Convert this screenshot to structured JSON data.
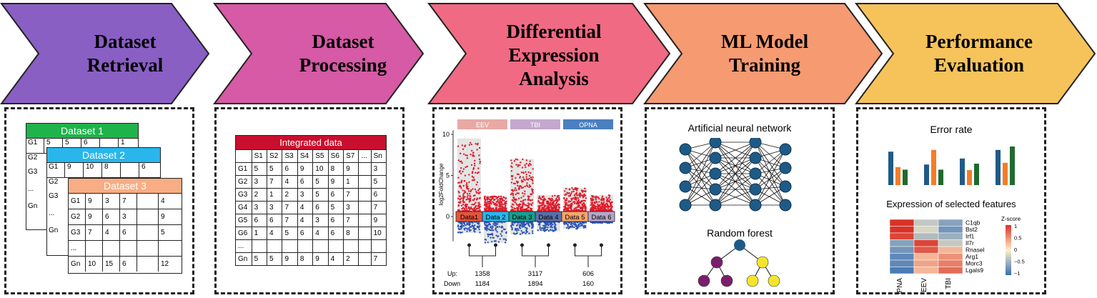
{
  "stages": [
    {
      "title_line1": "Dataset",
      "title_line2": "Retrieval",
      "color": "#8a5fc4"
    },
    {
      "title_line1": "Dataset",
      "title_line2": "Processing",
      "color": "#d65aa5"
    },
    {
      "title_line1": "Differential",
      "title_line2": "Expression",
      "title_line3": "Analysis",
      "color": "#f06a83"
    },
    {
      "title_line1": "ML Model",
      "title_line2": "Training",
      "color": "#f59a71"
    },
    {
      "title_line1": "Performance",
      "title_line2": "Evaluation",
      "color": "#f6c35a"
    }
  ],
  "retrieval": {
    "dataset1": {
      "title": "Dataset 1",
      "color": "#1fb34a",
      "rows": [
        "G1",
        "G2",
        "G3",
        "...",
        "Gn"
      ],
      "row1": [
        "5",
        "5",
        "6",
        "",
        "1"
      ]
    },
    "dataset2": {
      "title": "Dataset 2",
      "color": "#29b6ec",
      "rows": [
        "G1",
        "G2",
        "G3",
        "...",
        "Gn"
      ],
      "row1": [
        "9",
        "10",
        "8",
        "",
        "6"
      ]
    },
    "dataset3": {
      "title": "Dataset 3",
      "color": "#f8ad84",
      "rows": [
        {
          "g": "G1",
          "c": [
            "9",
            "3",
            "7",
            "",
            "4"
          ]
        },
        {
          "g": "G2",
          "c": [
            "9",
            "6",
            "3",
            "",
            "9"
          ]
        },
        {
          "g": "G3",
          "c": [
            "7",
            "4",
            "6",
            "",
            "5"
          ]
        },
        {
          "g": "...",
          "c": [
            "",
            "",
            "",
            "",
            ""
          ]
        },
        {
          "g": "Gn",
          "c": [
            "10",
            "15",
            "6",
            "",
            "12"
          ]
        }
      ]
    }
  },
  "processing": {
    "title": "Integrated data",
    "color": "#c8102e",
    "columns": [
      "",
      "S1",
      "S2",
      "S3",
      "S4",
      "S5",
      "S6",
      "S7",
      "...",
      "Sn"
    ],
    "rows": [
      [
        "G1",
        "5",
        "5",
        "6",
        "9",
        "10",
        "8",
        "9",
        "",
        "3"
      ],
      [
        "G2",
        "3",
        "7",
        "4",
        "6",
        "5",
        "9",
        "1",
        "",
        "5"
      ],
      [
        "G3",
        "2",
        "1",
        "2",
        "3",
        "5",
        "6",
        "7",
        "",
        "6"
      ],
      [
        "G4",
        "3",
        "3",
        "7",
        "4",
        "6",
        "5",
        "3",
        "",
        "7"
      ],
      [
        "G5",
        "6",
        "6",
        "7",
        "4",
        "3",
        "6",
        "7",
        "",
        "9"
      ],
      [
        "G6",
        "1",
        "4",
        "5",
        "6",
        "4",
        "6",
        "8",
        "",
        "10"
      ],
      [
        "...",
        "",
        "",
        "",
        "",
        "",
        "",
        "",
        "",
        ""
      ],
      [
        "Gn",
        "5",
        "5",
        "9",
        "8",
        "9",
        "4",
        "2",
        "",
        "7"
      ]
    ]
  },
  "dea": {
    "groups": [
      {
        "label": "EEV",
        "color": "#e8a9a5"
      },
      {
        "label": "TBI",
        "color": "#c4a8cf"
      },
      {
        "label": "OPNA",
        "color": "#4a7fc1"
      }
    ],
    "ylabel": "log2FoldChange",
    "yticks": [
      "10",
      "5",
      "0"
    ],
    "datasets": [
      {
        "label": "Data1",
        "color": "#e5553c",
        "up_max": 9.5,
        "down_min": -2
      },
      {
        "label": "Data 2",
        "color": "#29b6ec",
        "up_max": 2.5,
        "down_min": -3.2
      },
      {
        "label": "Data 3",
        "color": "#1a9e8f",
        "up_max": 7,
        "down_min": -2.2
      },
      {
        "label": "Data 4",
        "color": "#5b6fa8",
        "up_max": 2.6,
        "down_min": -1.8
      },
      {
        "label": "Data 5",
        "color": "#f7a56c",
        "up_max": 3.5,
        "down_min": -1.5
      },
      {
        "label": "Data 6",
        "color": "#b7a6c8",
        "up_max": 2.6,
        "down_min": -0.8
      }
    ],
    "up_label": "Up:",
    "down_label": "Down",
    "counts": [
      {
        "up": "1358",
        "down": "1184"
      },
      {
        "up": "3117",
        "down": "1894"
      },
      {
        "up": "606",
        "down": "160"
      }
    ]
  },
  "ml": {
    "ann_title": "Artificial neural network",
    "rf_title": "Random forest",
    "node_color": "#1f5a87",
    "leaf_colors": [
      "#7b1e6b",
      "#f3e52b"
    ]
  },
  "evaluation": {
    "error_title": "Error rate",
    "error_bars": [
      {
        "values": [
          0.78,
          0.42,
          0.36
        ]
      },
      {
        "values": [
          0.48,
          0.82,
          0.36
        ]
      },
      {
        "values": [
          0.62,
          0.35,
          0.5
        ]
      },
      {
        "values": [
          0.82,
          0.52,
          0.9
        ]
      }
    ],
    "bar_colors": [
      "#1f5a87",
      "#f57c28",
      "#1f6b2e"
    ],
    "heatmap_title": "Expression of selected features",
    "genes": [
      "C1qb",
      "Bst2",
      "Irf1",
      "Il7r",
      "Rnasel",
      "Arg1",
      "Morc3",
      "Lgals9"
    ],
    "columns": [
      "OPNA",
      "EEV",
      "TBI"
    ],
    "zscores": [
      [
        1.0,
        -0.3,
        -0.6
      ],
      [
        1.0,
        -0.2,
        -0.7
      ],
      [
        0.9,
        -0.4,
        -0.5
      ],
      [
        -0.6,
        0.9,
        -0.3
      ],
      [
        -0.7,
        0.8,
        0.3
      ],
      [
        -0.8,
        0.3,
        0.5
      ],
      [
        -0.8,
        0.4,
        0.6
      ],
      [
        -0.9,
        0.3,
        0.7
      ]
    ],
    "legend_title": "Z-score",
    "legend_ticks": [
      "1",
      "0.5",
      "0",
      "−0.5",
      "−1"
    ]
  }
}
